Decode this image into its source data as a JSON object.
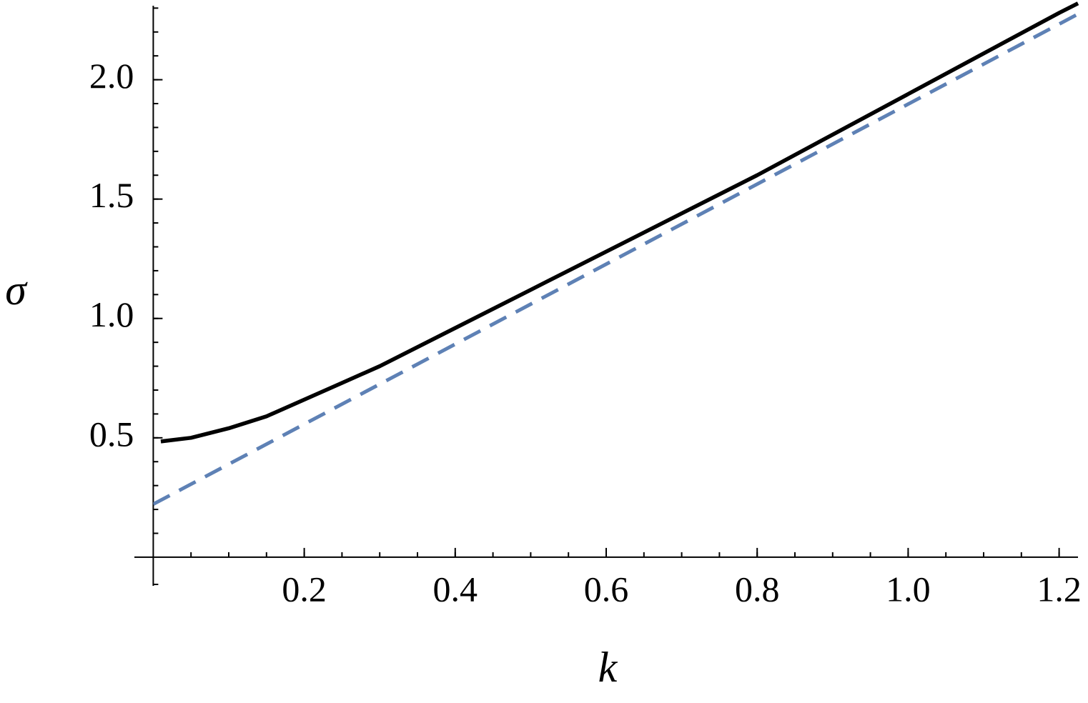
{
  "chart_data": {
    "type": "line",
    "xlabel": "k",
    "ylabel": "σ",
    "xlim": [
      -0.025,
      1.225
    ],
    "ylim": [
      -0.12,
      2.31
    ],
    "xticks": [
      0.2,
      0.4,
      0.6,
      0.8,
      {
        "value": 1,
        "label": "1.0"
      },
      1.2
    ],
    "yticks": [
      0.5,
      {
        "value": 1,
        "label": "1.0"
      },
      1.5,
      {
        "value": 2,
        "label": "2.0"
      }
    ],
    "series": [
      {
        "color": "#000000",
        "dashed": false,
        "x": [
          0.01,
          0.05,
          0.1,
          0.15,
          0.2,
          0.25,
          0.3,
          0.4,
          0.5,
          0.6,
          0.7,
          0.8,
          0.9,
          1.0,
          1.1,
          1.2,
          1.225
        ],
        "values": [
          0.485,
          0.5,
          0.54,
          0.59,
          0.66,
          0.73,
          0.8,
          0.96,
          1.12,
          1.28,
          1.44,
          1.6,
          1.77,
          1.94,
          2.11,
          2.28,
          2.32
        ]
      },
      {
        "color": "#5e81b5",
        "dashed": true,
        "x": [
          0,
          1.225
        ],
        "values": [
          0.222,
          2.275
        ]
      }
    ]
  }
}
